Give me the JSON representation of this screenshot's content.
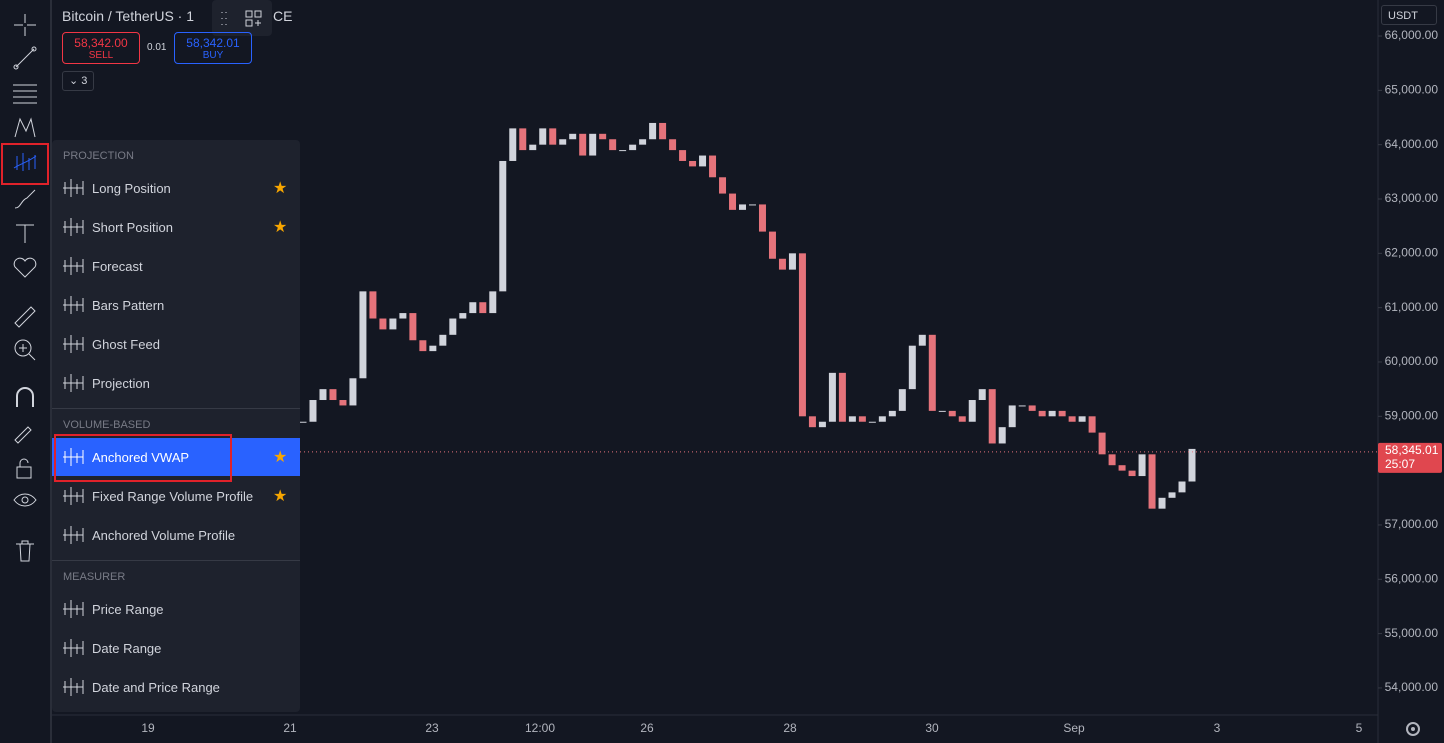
{
  "header": {
    "symbol": "Bitcoin / TetherUS · 1",
    "exchange_suffix": "CE",
    "sell": {
      "price": "58,342.00",
      "label": "SELL"
    },
    "spread": "0.01",
    "buy": {
      "price": "58,342.01",
      "label": "BUY"
    },
    "indicators_count": "3"
  },
  "currency": "USDT",
  "tool_menu": {
    "sections": [
      {
        "title": "PROJECTION",
        "items": [
          {
            "label": "Long Position",
            "favorite": true
          },
          {
            "label": "Short Position",
            "favorite": true
          },
          {
            "label": "Forecast",
            "favorite": false
          },
          {
            "label": "Bars Pattern",
            "favorite": false
          },
          {
            "label": "Ghost Feed",
            "favorite": false
          },
          {
            "label": "Projection",
            "favorite": false
          }
        ]
      },
      {
        "title": "VOLUME-BASED",
        "items": [
          {
            "label": "Anchored VWAP",
            "favorite": true,
            "selected": true
          },
          {
            "label": "Fixed Range Volume Profile",
            "favorite": true
          },
          {
            "label": "Anchored Volume Profile",
            "favorite": false
          }
        ]
      },
      {
        "title": "MEASURER",
        "items": [
          {
            "label": "Price Range",
            "favorite": false
          },
          {
            "label": "Date Range",
            "favorite": false
          },
          {
            "label": "Date and Price Range",
            "favorite": false
          }
        ]
      }
    ]
  },
  "chart": {
    "type": "candlestick",
    "up_color": "#d1d4dc",
    "down_color": "#e5737b",
    "prices": [
      58900,
      59300,
      59500,
      59300,
      59200,
      59700,
      61300,
      60800,
      60600,
      60800,
      60900,
      60400,
      60200,
      60300,
      60500,
      60800,
      60900,
      61100,
      60900,
      61300,
      63700,
      64300,
      63900,
      64000,
      64300,
      64000,
      64100,
      64200,
      63800,
      64200,
      64100,
      63900,
      63900,
      64000,
      64100,
      64400,
      64100,
      63900,
      63700,
      63600,
      63800,
      63400,
      63100,
      62800,
      62900,
      62900,
      62400,
      61900,
      61700,
      62000,
      59000,
      58800,
      58900,
      59800,
      58900,
      59000,
      58900,
      58900,
      59000,
      59100,
      59500,
      60300,
      60500,
      59100,
      59100,
      59000,
      58900,
      59300,
      59500,
      58500,
      58800,
      59200,
      59200,
      59100,
      59000,
      59100,
      59000,
      58900,
      59000,
      58700,
      58300,
      58100,
      58000,
      57900,
      58300,
      57300,
      57500,
      57600,
      57800,
      58400
    ],
    "ylim": [
      53502,
      66663
    ],
    "yticks": [
      {
        "value": 66000,
        "label": "66,000.00"
      },
      {
        "value": 65000,
        "label": "65,000.00"
      },
      {
        "value": 64000,
        "label": "64,000.00"
      },
      {
        "value": 63000,
        "label": "63,000.00"
      },
      {
        "value": 62000,
        "label": "62,000.00"
      },
      {
        "value": 61000,
        "label": "61,000.00"
      },
      {
        "value": 60000,
        "label": "60,000.00"
      },
      {
        "value": 59000,
        "label": "59,000.00"
      },
      {
        "value": 57000,
        "label": "57,000.00"
      },
      {
        "value": 56000,
        "label": "56,000.00"
      },
      {
        "value": 55000,
        "label": "55,000.00"
      },
      {
        "value": 54000,
        "label": "54,000.00"
      }
    ],
    "time_labels": [
      "19",
      "21",
      "23",
      "12:00",
      "26",
      "28",
      "30",
      "Sep",
      "3",
      "5"
    ],
    "current_price": {
      "value": 58345.01,
      "label": "58,345.01",
      "countdown": "25:07"
    }
  }
}
